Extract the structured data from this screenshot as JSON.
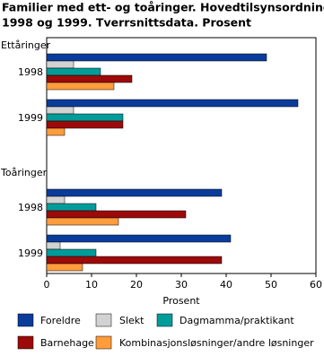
{
  "chart_data": {
    "type": "grouped-hbar",
    "title": [
      "Familier med ett- og toåringer. Hovedtilsynsordning",
      "1998 og 1999. Tverrsnittsdata. Prosent"
    ],
    "groups": [
      {
        "name": "Ettåringer",
        "categories": [
          "1998",
          "1999"
        ]
      },
      {
        "name": "Toåringer",
        "categories": [
          "1998",
          "1999"
        ]
      }
    ],
    "series": [
      {
        "name": "Foreldre",
        "color": "#0a3c9c",
        "values": [
          49,
          56,
          39,
          41
        ]
      },
      {
        "name": "Slekt",
        "color": "#d2d2d2",
        "values": [
          6,
          6,
          4,
          3
        ]
      },
      {
        "name": "Dagmamma/praktikant",
        "color": "#009c9a",
        "values": [
          12,
          17,
          11,
          11
        ]
      },
      {
        "name": "Barnehage",
        "color": "#9c0a0a",
        "values": [
          19,
          17,
          31,
          39
        ]
      },
      {
        "name": "Kombinasjonsløsninger/andre løsninger",
        "color": "#ff9c3c",
        "values": [
          15,
          4,
          16,
          8
        ]
      }
    ],
    "xlabel": "Prosent",
    "xlim": [
      0,
      60
    ],
    "xticks": [
      0,
      10,
      20,
      30,
      40,
      50,
      60
    ]
  }
}
